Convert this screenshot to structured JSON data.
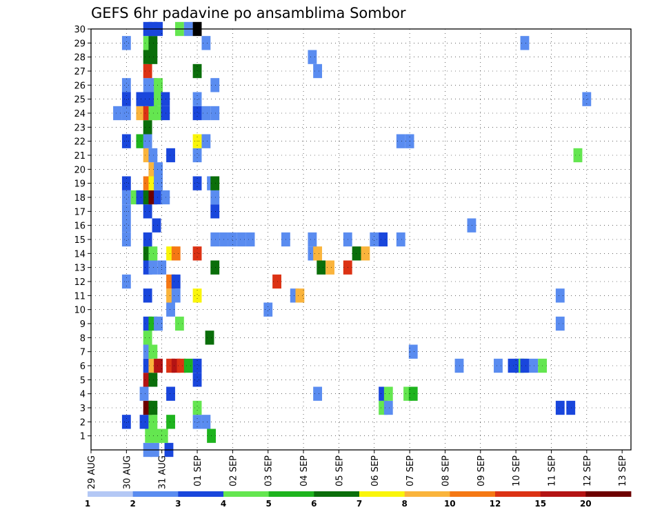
{
  "chart_data": {
    "type": "heatmap",
    "title": "GEFS 6hr padavine po ansamblima Sombor",
    "xlabel": "",
    "ylabel": "",
    "x_tick_labels": [
      "29 AUG",
      "30 AUG",
      "31 AUG",
      "01 SEP",
      "02 SEP",
      "03 SEP",
      "04 SEP",
      "05 SEP",
      "06 SEP",
      "07 SEP",
      "08 SEP",
      "09 SEP",
      "10 SEP",
      "11 SEP",
      "12 SEP",
      "13 SEP"
    ],
    "x_range_days": [
      0,
      15.25
    ],
    "y_range": [
      0,
      30
    ],
    "y_ticks": [
      1,
      2,
      3,
      4,
      5,
      6,
      7,
      8,
      9,
      10,
      11,
      12,
      13,
      14,
      15,
      16,
      17,
      18,
      19,
      20,
      21,
      22,
      23,
      24,
      25,
      26,
      27,
      28,
      29,
      30
    ],
    "grid": true,
    "legend": {
      "placement": "bottom",
      "bin_labels": [
        "1",
        "2",
        "3",
        "4",
        "5",
        "6",
        "7",
        "8",
        "10",
        "12",
        "15",
        "20"
      ],
      "colors": [
        "#b4c8f5",
        "#5a8cf0",
        "#1946dc",
        "#64e650",
        "#1eb41e",
        "#0a6e0a",
        "#faf50a",
        "#fab43c",
        "#f57814",
        "#dc3214",
        "#b41414",
        "#6e0000"
      ]
    },
    "cells": [
      [
        0,
        1.6,
        1
      ],
      [
        0,
        1.8,
        1
      ],
      [
        0,
        2.2,
        2
      ],
      [
        1,
        1.65,
        3
      ],
      [
        1,
        1.85,
        3
      ],
      [
        1,
        2.05,
        3
      ],
      [
        1,
        3.4,
        4
      ],
      [
        2,
        1.0,
        2
      ],
      [
        2,
        1.5,
        2
      ],
      [
        2,
        1.75,
        3
      ],
      [
        2,
        2.25,
        4
      ],
      [
        2,
        3.0,
        1
      ],
      [
        2,
        3.25,
        1
      ],
      [
        3,
        1.6,
        11
      ],
      [
        3,
        1.75,
        5
      ],
      [
        3,
        3.0,
        3
      ],
      [
        3,
        8.25,
        3
      ],
      [
        3,
        8.4,
        1
      ],
      [
        3,
        13.25,
        2
      ],
      [
        3,
        13.55,
        2
      ],
      [
        4,
        1.5,
        1
      ],
      [
        4,
        2.25,
        2
      ],
      [
        4,
        6.4,
        1
      ],
      [
        4,
        8.25,
        2
      ],
      [
        4,
        8.4,
        3
      ],
      [
        4,
        8.95,
        3
      ],
      [
        4,
        9.1,
        4
      ],
      [
        5,
        1.6,
        10
      ],
      [
        5,
        1.75,
        5
      ],
      [
        5,
        3.0,
        2
      ],
      [
        6,
        1.6,
        2
      ],
      [
        6,
        1.75,
        7
      ],
      [
        6,
        1.9,
        10
      ],
      [
        6,
        2.25,
        9
      ],
      [
        6,
        2.4,
        10
      ],
      [
        6,
        2.55,
        9
      ],
      [
        6,
        2.75,
        4
      ],
      [
        6,
        3.0,
        2
      ],
      [
        6,
        10.4,
        1
      ],
      [
        6,
        11.5,
        1
      ],
      [
        6,
        11.9,
        2
      ],
      [
        6,
        12.1,
        2
      ],
      [
        6,
        12.2,
        3
      ],
      [
        6,
        12.25,
        2
      ],
      [
        6,
        12.5,
        1
      ],
      [
        6,
        12.75,
        3
      ],
      [
        7,
        1.6,
        1
      ],
      [
        7,
        1.75,
        3
      ],
      [
        7,
        9.1,
        1
      ],
      [
        8,
        1.6,
        3
      ],
      [
        8,
        3.35,
        5
      ],
      [
        9,
        1.6,
        2
      ],
      [
        9,
        1.75,
        4
      ],
      [
        9,
        1.9,
        1
      ],
      [
        9,
        2.5,
        3
      ],
      [
        9,
        13.25,
        1
      ],
      [
        10,
        2.25,
        1
      ],
      [
        10,
        5.0,
        1
      ],
      [
        11,
        1.6,
        2
      ],
      [
        11,
        2.25,
        7
      ],
      [
        11,
        2.4,
        1
      ],
      [
        11,
        3.0,
        6
      ],
      [
        11,
        5.75,
        1
      ],
      [
        11,
        5.9,
        7
      ],
      [
        11,
        13.25,
        1
      ],
      [
        12,
        1.0,
        1
      ],
      [
        12,
        2.25,
        8
      ],
      [
        12,
        2.4,
        2
      ],
      [
        12,
        5.25,
        9
      ],
      [
        13,
        1.6,
        2
      ],
      [
        13,
        1.75,
        1
      ],
      [
        13,
        2.0,
        1
      ],
      [
        13,
        3.5,
        5
      ],
      [
        13,
        6.5,
        5
      ],
      [
        13,
        6.75,
        7
      ],
      [
        13,
        7.25,
        9
      ],
      [
        14,
        1.6,
        5
      ],
      [
        14,
        1.75,
        3
      ],
      [
        14,
        2.25,
        6
      ],
      [
        14,
        2.4,
        8
      ],
      [
        14,
        3.0,
        9
      ],
      [
        14,
        6.25,
        1
      ],
      [
        14,
        6.4,
        7
      ],
      [
        14,
        7.5,
        5
      ],
      [
        14,
        7.75,
        7
      ],
      [
        15,
        1.0,
        1
      ],
      [
        15,
        1.6,
        2
      ],
      [
        15,
        3.5,
        1
      ],
      [
        15,
        3.75,
        1
      ],
      [
        15,
        4.0,
        1
      ],
      [
        15,
        4.25,
        1
      ],
      [
        15,
        4.5,
        1
      ],
      [
        15,
        5.5,
        1
      ],
      [
        15,
        6.25,
        1
      ],
      [
        15,
        7.25,
        1
      ],
      [
        15,
        8.0,
        1
      ],
      [
        15,
        8.25,
        2
      ],
      [
        15,
        8.75,
        1
      ],
      [
        16,
        1.0,
        1
      ],
      [
        16,
        1.85,
        2
      ],
      [
        16,
        10.75,
        1
      ],
      [
        17,
        1.0,
        1
      ],
      [
        17,
        1.6,
        2
      ],
      [
        17,
        3.5,
        2
      ],
      [
        18,
        1.0,
        1
      ],
      [
        18,
        1.25,
        3
      ],
      [
        18,
        1.4,
        2
      ],
      [
        18,
        1.6,
        5
      ],
      [
        18,
        1.75,
        11
      ],
      [
        18,
        1.9,
        2
      ],
      [
        18,
        2.1,
        1
      ],
      [
        18,
        3.5,
        1
      ],
      [
        19,
        1.0,
        2
      ],
      [
        19,
        1.6,
        8
      ],
      [
        19,
        1.75,
        6
      ],
      [
        19,
        1.9,
        1
      ],
      [
        19,
        3.0,
        2
      ],
      [
        19,
        3.4,
        1
      ],
      [
        19,
        3.5,
        5
      ],
      [
        20,
        1.75,
        7
      ],
      [
        20,
        1.9,
        1
      ],
      [
        21,
        1.6,
        7
      ],
      [
        21,
        1.75,
        1
      ],
      [
        21,
        2.25,
        2
      ],
      [
        21,
        3.0,
        1
      ],
      [
        21,
        13.75,
        3
      ],
      [
        22,
        1.0,
        2
      ],
      [
        22,
        1.4,
        4
      ],
      [
        22,
        1.6,
        1
      ],
      [
        22,
        3.0,
        6
      ],
      [
        22,
        3.25,
        1
      ],
      [
        22,
        8.75,
        1
      ],
      [
        22,
        9.0,
        1
      ],
      [
        23,
        1.6,
        5
      ],
      [
        24,
        0.75,
        1
      ],
      [
        24,
        1.0,
        1
      ],
      [
        24,
        1.4,
        7
      ],
      [
        24,
        1.6,
        9
      ],
      [
        24,
        1.75,
        3
      ],
      [
        24,
        1.9,
        3
      ],
      [
        24,
        2.1,
        2
      ],
      [
        24,
        3.0,
        2
      ],
      [
        24,
        3.25,
        1
      ],
      [
        24,
        3.5,
        1
      ],
      [
        25,
        1.0,
        2
      ],
      [
        25,
        1.4,
        2
      ],
      [
        25,
        1.6,
        2
      ],
      [
        25,
        1.75,
        2
      ],
      [
        25,
        1.9,
        3
      ],
      [
        25,
        2.1,
        2
      ],
      [
        25,
        3.0,
        1
      ],
      [
        25,
        14.0,
        1
      ],
      [
        26,
        1.0,
        1
      ],
      [
        26,
        1.6,
        1
      ],
      [
        26,
        1.75,
        1
      ],
      [
        26,
        1.9,
        3
      ],
      [
        26,
        3.5,
        1
      ],
      [
        27,
        1.6,
        9
      ],
      [
        27,
        3.0,
        5
      ],
      [
        27,
        6.4,
        1
      ],
      [
        28,
        1.6,
        5
      ],
      [
        28,
        1.75,
        5
      ],
      [
        28,
        6.25,
        1
      ],
      [
        29,
        1.0,
        1
      ],
      [
        29,
        1.6,
        3
      ],
      [
        29,
        1.75,
        5
      ],
      [
        29,
        3.25,
        1
      ],
      [
        29,
        12.25,
        1
      ],
      [
        30,
        1.6,
        2
      ],
      [
        30,
        1.75,
        2
      ],
      [
        30,
        1.9,
        2
      ],
      [
        30,
        2.5,
        3
      ],
      [
        30,
        2.75,
        1
      ],
      [
        30,
        3.0,
        12
      ]
    ]
  }
}
